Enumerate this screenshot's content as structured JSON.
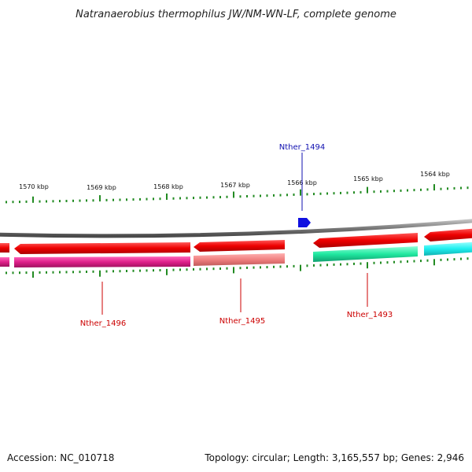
{
  "title": "Natranaerobius thermophilus JW/NM-WN-LF, complete genome",
  "footer": {
    "accession": "Accession: NC_010718",
    "summary": "Topology: circular; Length: 3,165,557 bp; Genes: 2,946"
  },
  "scale": {
    "unit": "kbp",
    "labels": [
      "1570 kbp",
      "1569 kbp",
      "1568 kbp",
      "1567 kbp",
      "1566 kbp",
      "1565 kbp",
      "1564 kbp"
    ]
  },
  "genes": [
    {
      "id": "Nther_1494",
      "label": "Nther_1494",
      "strand": "forward",
      "color": "#1010e0",
      "label_color": "#1010b0"
    },
    {
      "id": "Nther_1496",
      "label": "Nther_1496",
      "strand": "reverse",
      "color": "#e0208a",
      "label_color": "#cc0000"
    },
    {
      "id": "Nther_1495",
      "label": "Nther_1495",
      "strand": "reverse",
      "color": "#f08080",
      "label_color": "#cc0000"
    },
    {
      "id": "Nther_1493",
      "label": "Nther_1493",
      "strand": "reverse",
      "color": "#20e8a0",
      "label_color": "#cc0000"
    }
  ],
  "colors": {
    "backbone": "#7a7a7a",
    "cds_arrow": "#ee0000",
    "tick": "#228b22",
    "extra_gene": "#20f0f0"
  }
}
